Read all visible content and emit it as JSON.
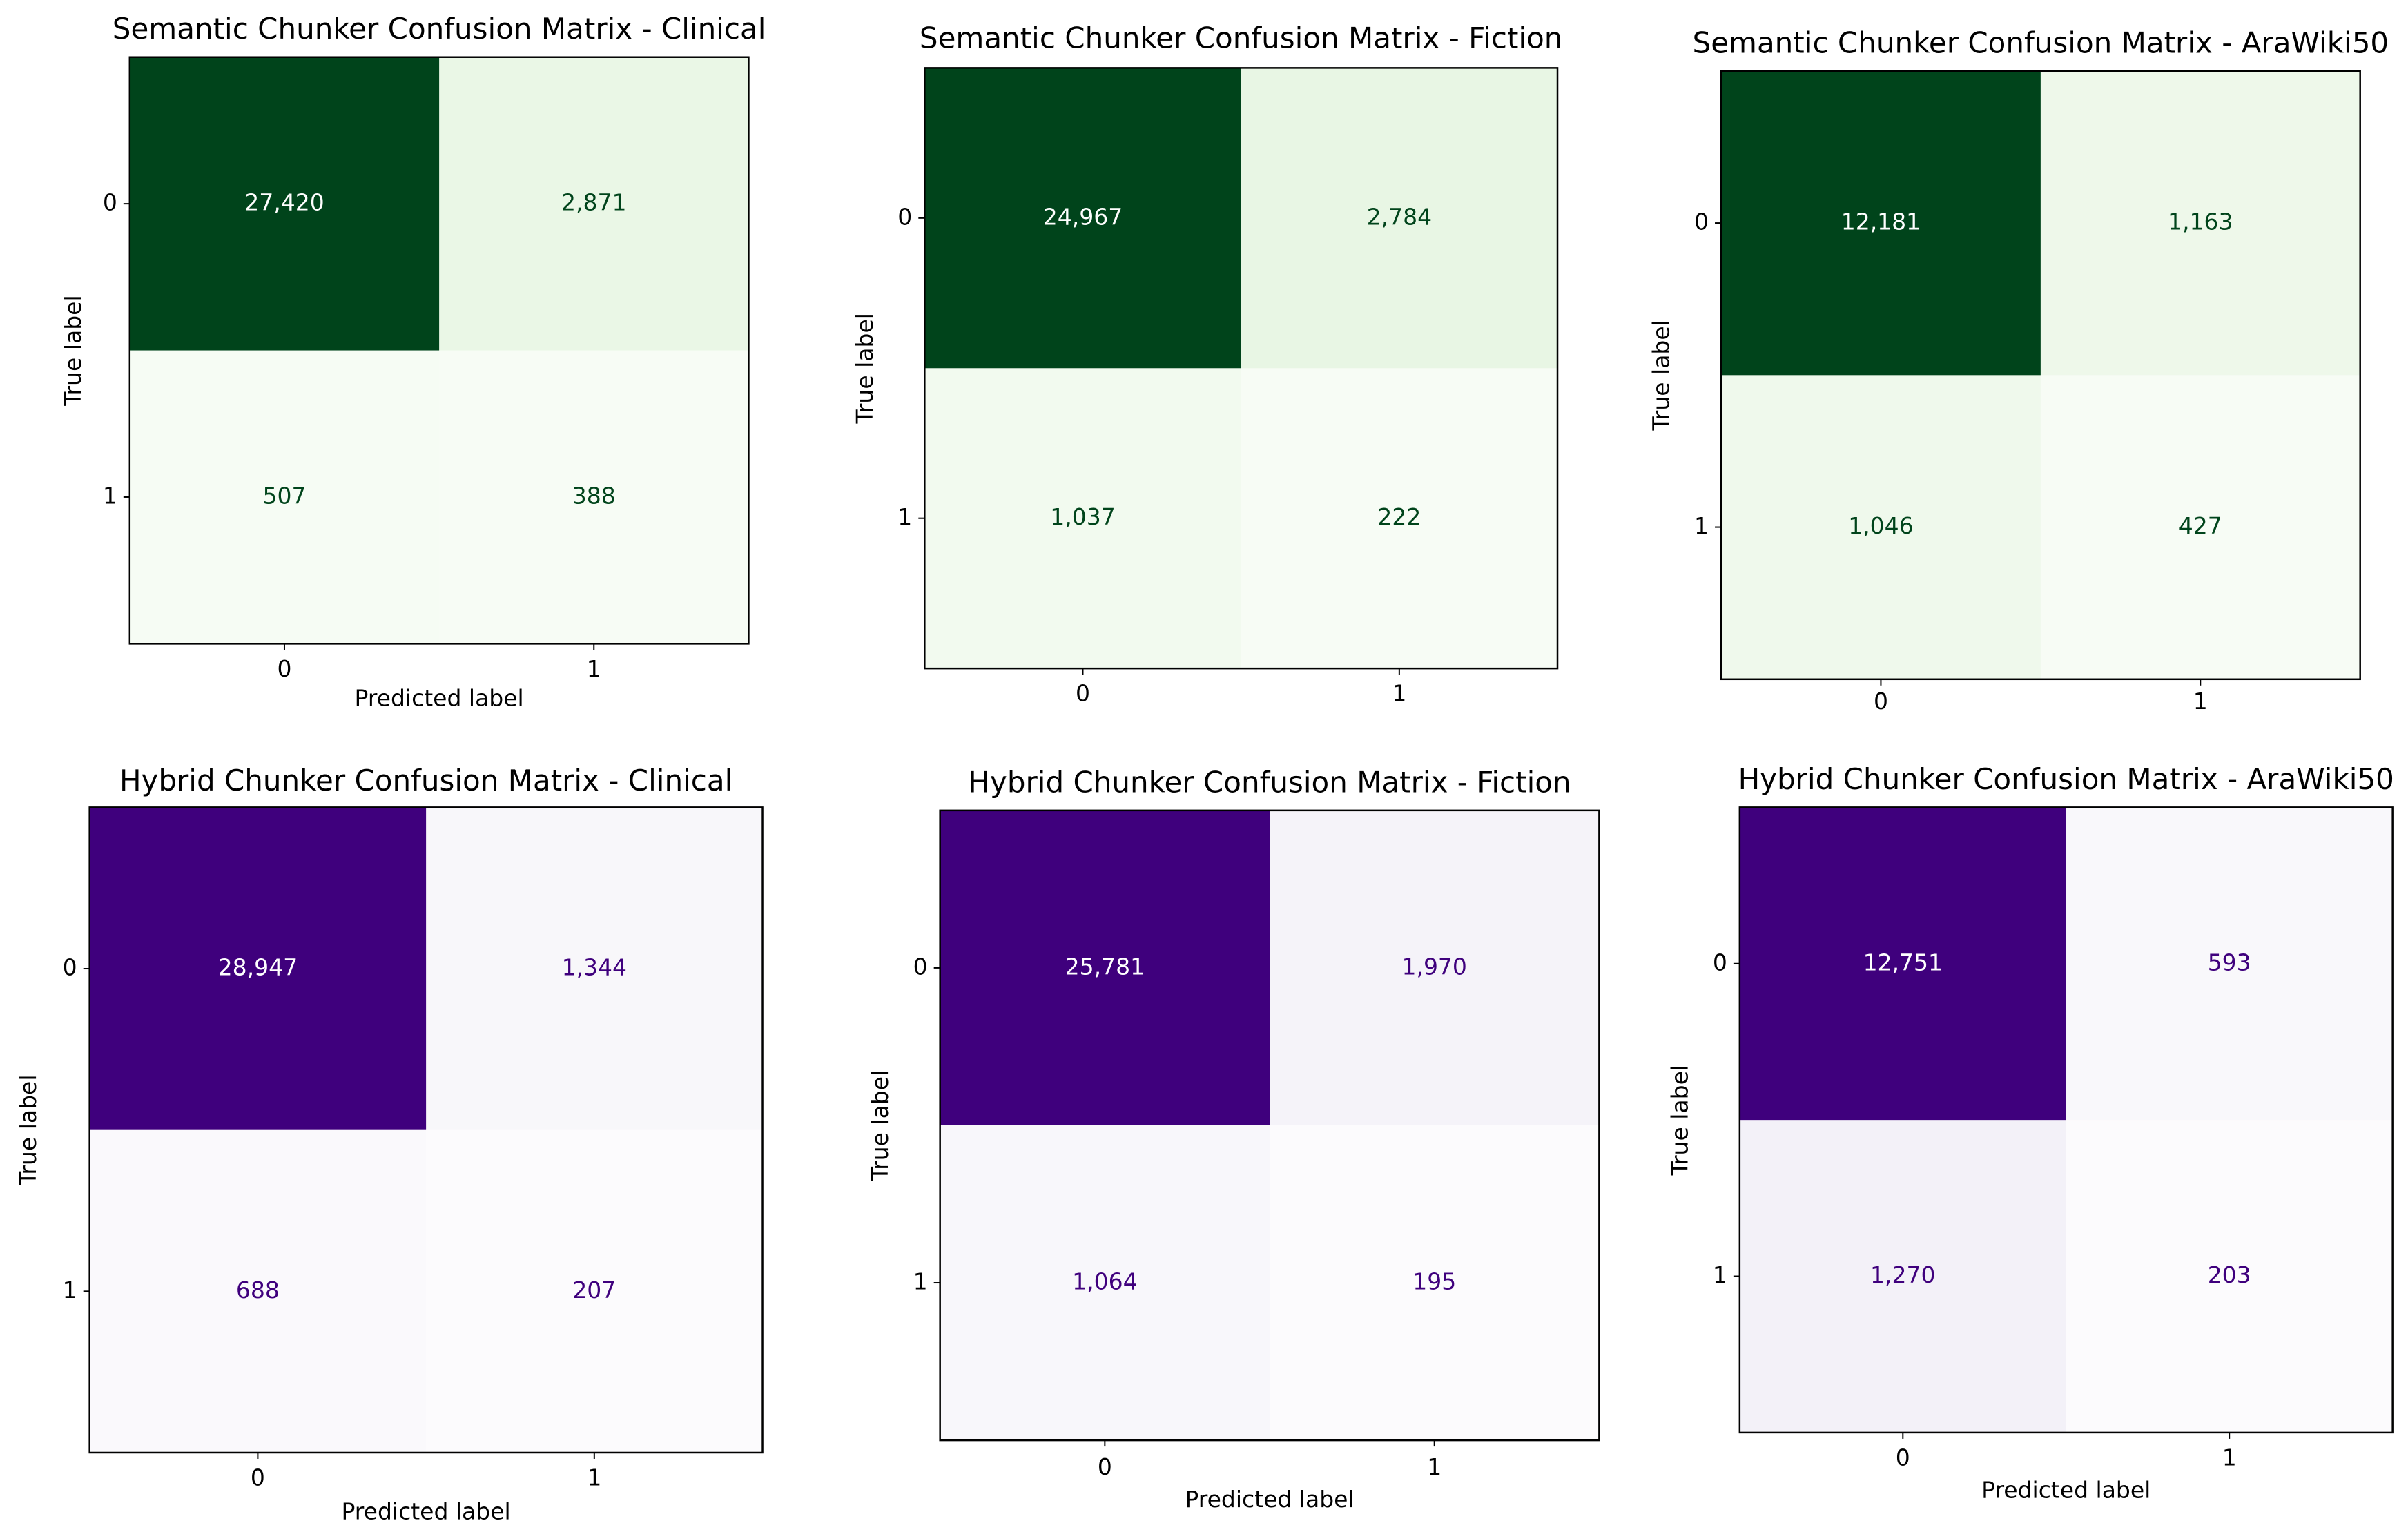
{
  "chart_data": [
    {
      "type": "heatmap",
      "title": "Semantic Chunker Confusion Matrix - Clinical",
      "x_label": "Predicted label",
      "y_label": "True label",
      "x_categories": [
        "0",
        "1"
      ],
      "y_categories": [
        "0",
        "1"
      ],
      "colormap": "Greens",
      "values": [
        [
          27420,
          2871
        ],
        [
          507,
          388
        ]
      ],
      "value_labels": [
        [
          "27,420",
          "2,871"
        ],
        [
          "507",
          "388"
        ]
      ]
    },
    {
      "type": "heatmap",
      "title": "Semantic Chunker Confusion Matrix - Fiction",
      "y_label": "True label",
      "x_categories": [
        "0",
        "1"
      ],
      "y_categories": [
        "0",
        "1"
      ],
      "colormap": "Greens",
      "values": [
        [
          24967,
          2784
        ],
        [
          1037,
          222
        ]
      ],
      "value_labels": [
        [
          "24,967",
          "2,784"
        ],
        [
          "1,037",
          "222"
        ]
      ]
    },
    {
      "type": "heatmap",
      "title": "Semantic Chunker Confusion Matrix - AraWiki50",
      "y_label": "True label",
      "x_categories": [
        "0",
        "1"
      ],
      "y_categories": [
        "0",
        "1"
      ],
      "colormap": "Greens",
      "values": [
        [
          12181,
          1163
        ],
        [
          1046,
          427
        ]
      ],
      "value_labels": [
        [
          "12,181",
          "1,163"
        ],
        [
          "1,046",
          "427"
        ]
      ]
    },
    {
      "type": "heatmap",
      "title": "Hybrid Chunker Confusion Matrix - Clinical",
      "x_label": "Predicted label",
      "y_label": "True label",
      "x_categories": [
        "0",
        "1"
      ],
      "y_categories": [
        "0",
        "1"
      ],
      "colormap": "Purples",
      "values": [
        [
          28947,
          1344
        ],
        [
          688,
          207
        ]
      ],
      "value_labels": [
        [
          "28,947",
          "1,344"
        ],
        [
          "688",
          "207"
        ]
      ]
    },
    {
      "type": "heatmap",
      "title": "Hybrid Chunker Confusion Matrix - Fiction",
      "x_label": "Predicted label",
      "y_label": "True label",
      "x_categories": [
        "0",
        "1"
      ],
      "y_categories": [
        "0",
        "1"
      ],
      "colormap": "Purples",
      "values": [
        [
          25781,
          1970
        ],
        [
          1064,
          195
        ]
      ],
      "value_labels": [
        [
          "25,781",
          "1,970"
        ],
        [
          "1,064",
          "195"
        ]
      ]
    },
    {
      "type": "heatmap",
      "title": "Hybrid Chunker Confusion Matrix - AraWiki50",
      "x_label": "Predicted label",
      "y_label": "True label",
      "x_categories": [
        "0",
        "1"
      ],
      "y_categories": [
        "0",
        "1"
      ],
      "colormap": "Purples",
      "values": [
        [
          12751,
          593
        ],
        [
          1270,
          203
        ]
      ],
      "value_labels": [
        [
          "12,751",
          "593"
        ],
        [
          "1,270",
          "203"
        ]
      ]
    }
  ]
}
